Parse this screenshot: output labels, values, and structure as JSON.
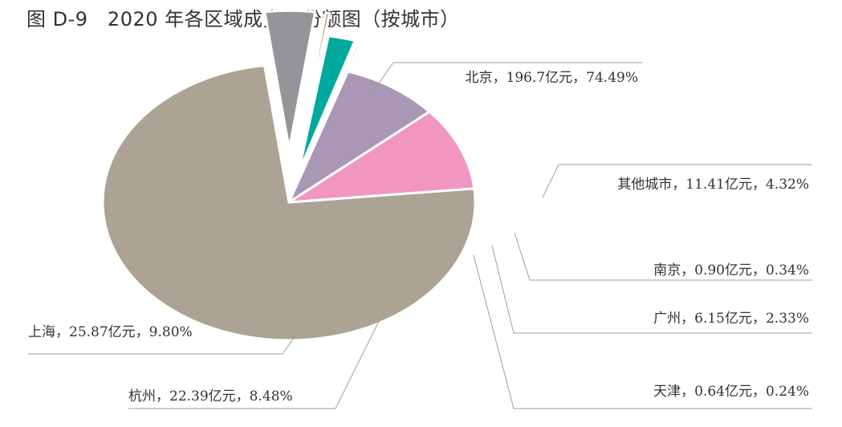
{
  "title": "图 D-9   2020 年各区域成交额份额图（按城市）",
  "chart_data": {
    "type": "pie",
    "title": "图 D-9   2020 年各区域成交额份额图（按城市）",
    "unit": "亿元",
    "slices": [
      {
        "name": "北京",
        "value": 196.7,
        "percent": 74.49,
        "label": "北京，196.7亿元，74.49%",
        "color": "#aca394"
      },
      {
        "name": "其他城市",
        "value": 11.41,
        "percent": 4.32,
        "label": "其他城市，11.41亿元，4.32%",
        "color": "#939598"
      },
      {
        "name": "南京",
        "value": 0.9,
        "percent": 0.34,
        "label": "南京，0.90亿元，0.34%",
        "color": "#c6a67d"
      },
      {
        "name": "广州",
        "value": 6.15,
        "percent": 2.33,
        "label": "广州，6.15亿元，2.33%",
        "color": "#00a99d"
      },
      {
        "name": "天津",
        "value": 0.64,
        "percent": 0.24,
        "label": "天津，0.64亿元，0.24%",
        "color": "#6fb8d8"
      },
      {
        "name": "杭州",
        "value": 22.39,
        "percent": 8.48,
        "label": "杭州，22.39亿元，8.48%",
        "color": "#a997b5"
      },
      {
        "name": "上海",
        "value": 25.87,
        "percent": 9.8,
        "label": "上海，25.87亿元，9.80%",
        "color": "#f196c0"
      }
    ]
  }
}
